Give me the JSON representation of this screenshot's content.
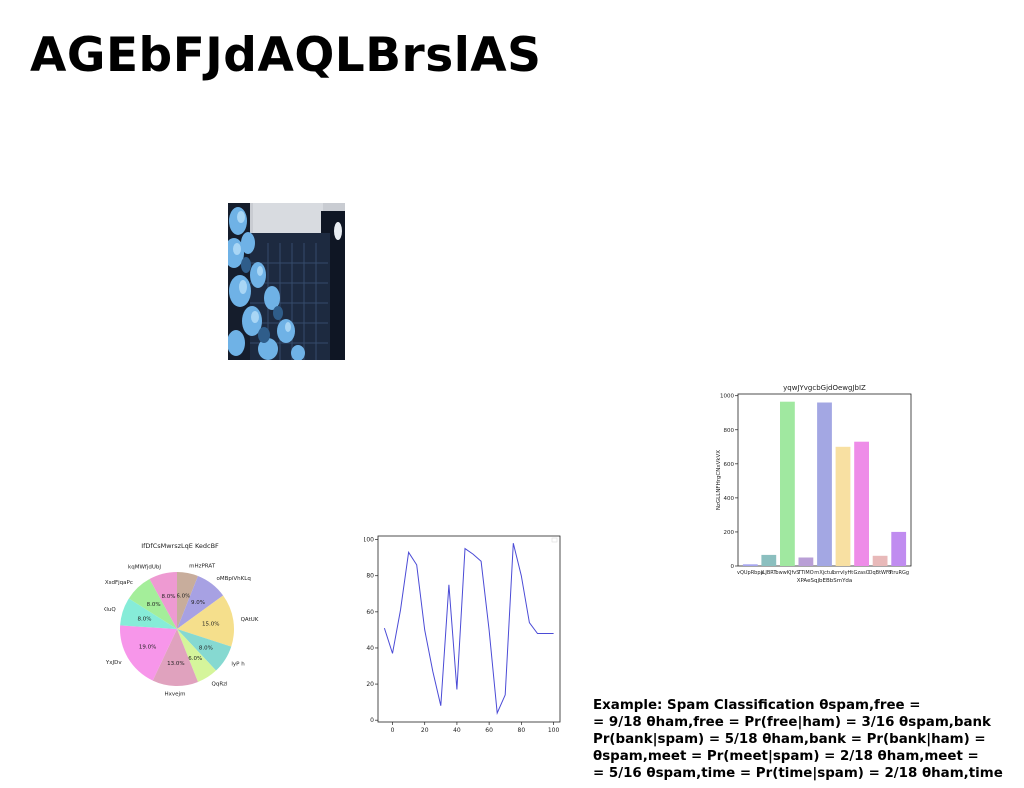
{
  "page": {
    "title": "AGEbFJdAQLBrslAS",
    "body_lines": [
      "Example: Spam Classification θspam,free =",
      "= 9/18 θham,free = Pr(free|ham) = 3/16 θspam,bank",
      "Pr(bank|spam) = 5/18 θham,bank = Pr(bank|ham) =",
      "θspam,meet = Pr(meet|spam) = 2/18 θham,meet =",
      "= 5/16 θspam,time = Pr(time|spam) = 2/18 θham,time"
    ]
  },
  "photo": {
    "colors": [
      "#0c1424",
      "#2f5d8a",
      "#7ab8e6",
      "#b9d4ea",
      "#c9ccd2"
    ]
  },
  "chart_data": [
    {
      "type": "pie",
      "title": "IfDfCsMwrszLqE KedcBF",
      "labels": [
        "mHzPRAT",
        "oMBpiVhKLq",
        "QAtUK",
        "lyP h",
        "QqRzl",
        "Hxvejm",
        "YxJDv",
        "NpgKluQ",
        "XsdFjqaPc",
        "kqMWfjdUbJ"
      ],
      "values": [
        6.0,
        9.0,
        15.0,
        8.0,
        6.0,
        13.0,
        19.0,
        8.0,
        8.0,
        8.0
      ],
      "pct_labels": [
        "6.0%",
        "9.0%",
        "15.0%",
        "8.0%",
        "6.0%",
        "13.0%",
        "19.0%",
        "8.0%",
        "8.0%",
        "8.0%"
      ],
      "colors": [
        "#c8ad9c",
        "#a7a1e3",
        "#f5df8c",
        "#86d9d1",
        "#d5f59b",
        "#e0a2be",
        "#f796ea",
        "#86ecd8",
        "#a4ee9a",
        "#ee9ad2"
      ],
      "start_angle_deg": 90,
      "direction": "clockwise"
    },
    {
      "type": "line",
      "x": [
        -5,
        0,
        5,
        10,
        15,
        20,
        25,
        30,
        35,
        40,
        45,
        50,
        55,
        60,
        65,
        70,
        75,
        80,
        85,
        90,
        95,
        100
      ],
      "y": [
        51,
        37,
        61,
        93,
        86,
        50,
        27,
        8,
        75,
        17,
        95,
        92,
        88,
        50,
        4,
        14,
        98,
        80,
        54,
        48,
        48,
        48
      ],
      "xticks": [
        0,
        20,
        40,
        60,
        80,
        100
      ],
      "yticks": [
        0,
        20,
        40,
        60,
        80,
        100
      ],
      "xlim": [
        -9,
        104
      ],
      "ylim": [
        -1,
        102
      ],
      "color": "#4b4bd6"
    },
    {
      "type": "bar",
      "title": "yqwJYvgcbGjdOewgJbIZ",
      "xlabel": "XPAeSqjbEBbSmYda",
      "ylabel": "NzGLLNFHrgCNxVkVX",
      "categories": [
        "vQUpRbpa",
        "JLJBRT",
        "bwwKJfvS",
        "TTiMO",
        "rnXjctuL",
        "hrrvIyHt",
        "GzasO",
        "OqBtWFT",
        "otruRGg"
      ],
      "values": [
        10,
        65,
        965,
        50,
        960,
        700,
        730,
        60,
        200
      ],
      "colors": [
        "#a6a6f0",
        "#8bbfbf",
        "#a0e8a0",
        "#b99fd6",
        "#a3a7e3",
        "#f8e0a2",
        "#ee8ce8",
        "#e8b9b9",
        "#c08cf0"
      ],
      "yticks": [
        0,
        200,
        400,
        600,
        800,
        1000
      ],
      "ylim": [
        0,
        1010
      ]
    }
  ]
}
